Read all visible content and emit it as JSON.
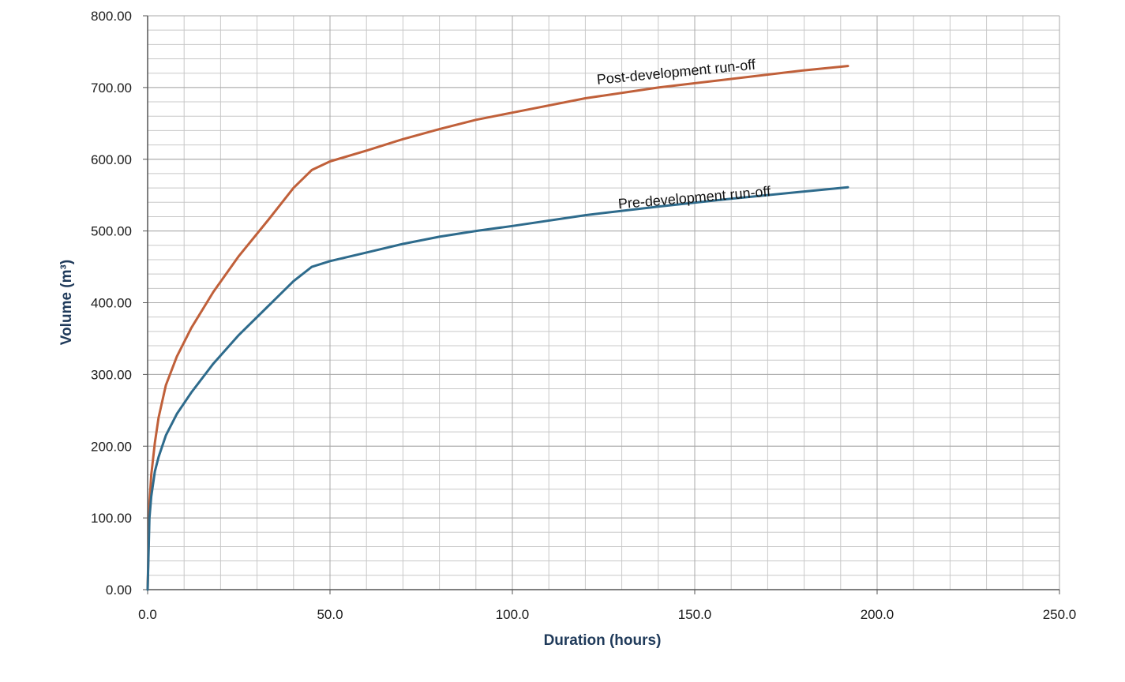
{
  "chart_data": {
    "type": "line",
    "title": "",
    "xlabel": "Duration (hours)",
    "ylabel": "Volume (m³)",
    "xlim": [
      0,
      250
    ],
    "ylim": [
      0,
      800
    ],
    "x_ticks": [
      "0.0",
      "50.0",
      "100.0",
      "150.0",
      "200.0",
      "250.0"
    ],
    "y_ticks": [
      "0.00",
      "100.00",
      "200.00",
      "300.00",
      "400.00",
      "500.00",
      "600.00",
      "700.00",
      "800.00"
    ],
    "grid": true,
    "legend": "none",
    "series": [
      {
        "name": "Post-development run-off",
        "color": "#c0603a",
        "x": [
          0,
          0.5,
          1,
          2,
          3,
          5,
          8,
          12,
          18,
          25,
          33,
          40,
          45,
          50,
          60,
          70,
          80,
          90,
          100,
          120,
          140,
          160,
          180,
          192
        ],
        "y": [
          0,
          120,
          160,
          205,
          240,
          285,
          325,
          365,
          415,
          465,
          515,
          560,
          585,
          597,
          612,
          628,
          642,
          655,
          665,
          685,
          700,
          712,
          724,
          730
        ]
      },
      {
        "name": "Pre-development run-off",
        "color": "#2e6b8c",
        "x": [
          0,
          0.5,
          1,
          2,
          3,
          5,
          8,
          12,
          18,
          25,
          33,
          40,
          45,
          50,
          60,
          70,
          80,
          90,
          100,
          120,
          140,
          160,
          180,
          192
        ],
        "y": [
          0,
          100,
          130,
          165,
          185,
          215,
          245,
          275,
          315,
          355,
          395,
          430,
          450,
          458,
          470,
          482,
          492,
          500,
          507,
          522,
          534,
          545,
          555,
          561
        ]
      }
    ]
  }
}
